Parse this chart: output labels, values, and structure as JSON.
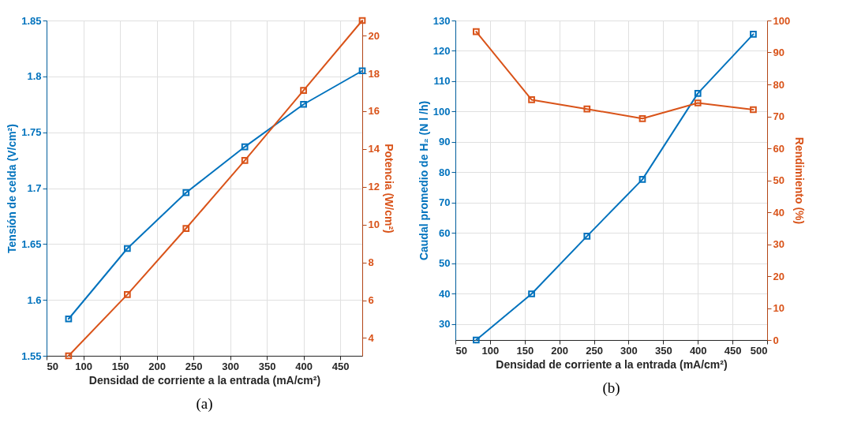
{
  "chart_data": [
    {
      "type": "line",
      "x": [
        80,
        160,
        240,
        320,
        400,
        480
      ],
      "xlabel": "Densidad de corriente a la entrada (mA/cm²)",
      "ylabel": "Tensión de celda (V/cm²)",
      "y2label": "Potencia (W/cm²)",
      "series": [
        {
          "color": "#0072bd",
          "values": [
            1.583,
            1.646,
            1.696,
            1.737,
            1.775,
            1.805
          ]
        },
        {
          "color": "#d95319",
          "axis": "y2",
          "values": [
            3.06,
            6.3,
            9.8,
            13.4,
            17.1,
            20.8
          ]
        }
      ],
      "xlim": [
        50,
        480
      ],
      "xticks": [
        50,
        100,
        150,
        200,
        250,
        300,
        350,
        400,
        450
      ],
      "ylim": [
        1.55,
        1.85
      ],
      "yticks": [
        1.55,
        1.6,
        1.65,
        1.7,
        1.75,
        1.8,
        1.85
      ],
      "y2lim": [
        3.06,
        20.8
      ],
      "y2ticks": [
        4,
        6,
        8,
        10,
        12,
        14,
        16,
        18,
        20
      ],
      "grid": true,
      "marker": "square",
      "line_style": "solid",
      "annotations": [
        "(a)"
      ]
    },
    {
      "type": "line",
      "x": [
        80,
        160,
        240,
        320,
        400,
        480
      ],
      "xlabel": "Densidad de corriente a la entrada (mA/cm²)",
      "ylabel": "Caudal promedio de H₂ (N l /h)",
      "y2label": "Rendimiento (%)",
      "series": [
        {
          "color": "#0072bd",
          "values": [
            24.8,
            40,
            59,
            77.7,
            106,
            125.5
          ]
        },
        {
          "color": "#d95319",
          "axis": "y2",
          "values": [
            96.5,
            75.2,
            72.3,
            69.3,
            74.2,
            72.1
          ]
        }
      ],
      "xlim": [
        50,
        500
      ],
      "xticks": [
        50,
        100,
        150,
        200,
        250,
        300,
        350,
        400,
        450,
        500
      ],
      "ylim": [
        24.8,
        130
      ],
      "yticks": [
        30,
        40,
        50,
        60,
        70,
        80,
        90,
        100,
        110,
        120,
        130
      ],
      "y2lim": [
        0,
        100
      ],
      "y2ticks": [
        0,
        10,
        20,
        30,
        40,
        50,
        60,
        70,
        80,
        90,
        100
      ],
      "grid": true,
      "marker": "square",
      "line_style": "solid",
      "annotations": [
        "(b)"
      ]
    }
  ]
}
